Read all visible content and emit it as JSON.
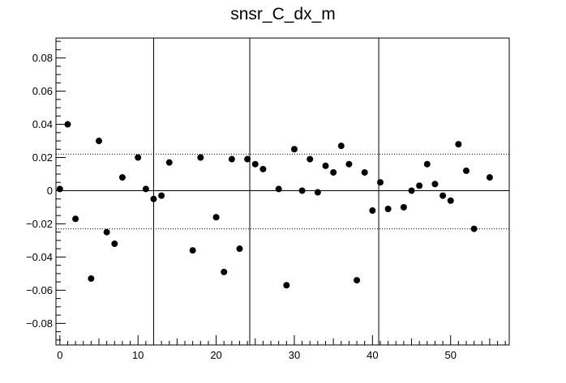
{
  "chart_data": {
    "type": "scatter",
    "title": "snsr_C_dx_m",
    "xlabel": "",
    "ylabel": "",
    "xlim": [
      -0.5,
      57.5
    ],
    "ylim": [
      -0.093,
      0.092
    ],
    "x_ticks": [
      0,
      10,
      20,
      30,
      40,
      50
    ],
    "x_tick_labels": [
      "0",
      "10",
      "20",
      "30",
      "40",
      "50"
    ],
    "y_ticks": [
      -0.08,
      -0.06,
      -0.04,
      -0.02,
      0,
      0.02,
      0.04,
      0.06,
      0.08
    ],
    "y_tick_labels": [
      "−0.08",
      "−0.06",
      "−0.04",
      "−0.02",
      "0",
      "0.02",
      "0.04",
      "0.06",
      "0.08"
    ],
    "grid": false,
    "reference_lines": {
      "horizontal_solid": 0,
      "horizontal_dotted": [
        0.022,
        -0.023
      ],
      "vertical_solid": [
        12,
        24.3,
        40.8
      ]
    },
    "marker_color": "#000000",
    "points": [
      {
        "x": 0,
        "y": 0.001
      },
      {
        "x": 1,
        "y": 0.04
      },
      {
        "x": 2,
        "y": -0.017
      },
      {
        "x": 4,
        "y": -0.053
      },
      {
        "x": 5,
        "y": 0.03
      },
      {
        "x": 6,
        "y": -0.025
      },
      {
        "x": 7,
        "y": -0.032
      },
      {
        "x": 8,
        "y": 0.008
      },
      {
        "x": 10,
        "y": 0.02
      },
      {
        "x": 11,
        "y": 0.001
      },
      {
        "x": 12,
        "y": -0.005
      },
      {
        "x": 13,
        "y": -0.003
      },
      {
        "x": 14,
        "y": 0.017
      },
      {
        "x": 17,
        "y": -0.036
      },
      {
        "x": 18,
        "y": 0.02
      },
      {
        "x": 20,
        "y": -0.016
      },
      {
        "x": 21,
        "y": -0.049
      },
      {
        "x": 22,
        "y": 0.019
      },
      {
        "x": 23,
        "y": -0.035
      },
      {
        "x": 24,
        "y": 0.019
      },
      {
        "x": 25,
        "y": 0.016
      },
      {
        "x": 26,
        "y": 0.013
      },
      {
        "x": 28,
        "y": 0.001
      },
      {
        "x": 29,
        "y": -0.057
      },
      {
        "x": 30,
        "y": 0.025
      },
      {
        "x": 31,
        "y": 0.0
      },
      {
        "x": 32,
        "y": 0.019
      },
      {
        "x": 33,
        "y": -0.001
      },
      {
        "x": 34,
        "y": 0.015
      },
      {
        "x": 35,
        "y": 0.011
      },
      {
        "x": 36,
        "y": 0.027
      },
      {
        "x": 37,
        "y": 0.016
      },
      {
        "x": 38,
        "y": -0.054
      },
      {
        "x": 39,
        "y": 0.011
      },
      {
        "x": 40,
        "y": -0.012
      },
      {
        "x": 41,
        "y": 0.005
      },
      {
        "x": 42,
        "y": -0.011
      },
      {
        "x": 44,
        "y": -0.01
      },
      {
        "x": 45,
        "y": 0.0
      },
      {
        "x": 46,
        "y": 0.003
      },
      {
        "x": 47,
        "y": 0.016
      },
      {
        "x": 48,
        "y": 0.004
      },
      {
        "x": 49,
        "y": -0.003
      },
      {
        "x": 50,
        "y": -0.006
      },
      {
        "x": 51,
        "y": 0.028
      },
      {
        "x": 52,
        "y": 0.012
      },
      {
        "x": 53,
        "y": -0.023
      },
      {
        "x": 55,
        "y": 0.008
      }
    ]
  }
}
